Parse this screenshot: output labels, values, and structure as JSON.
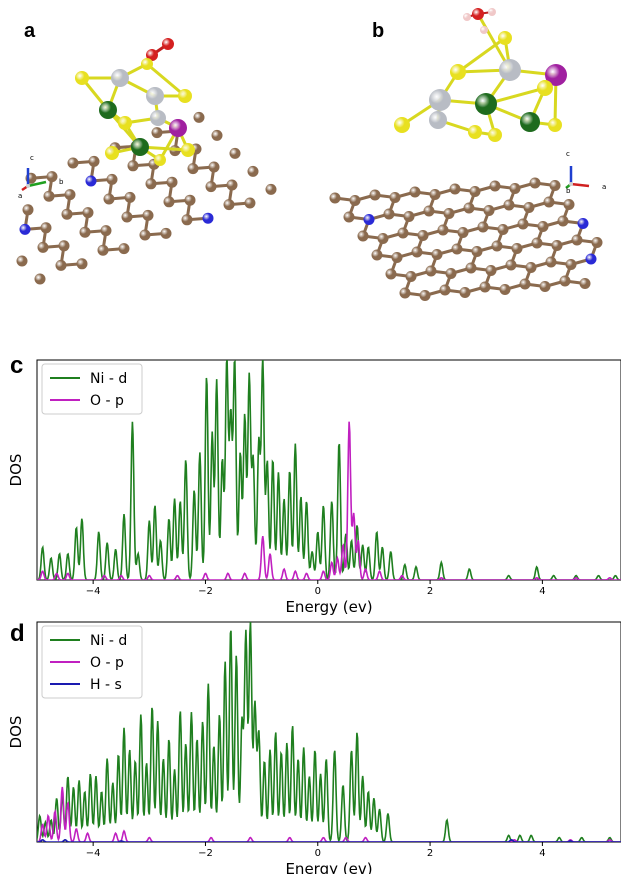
{
  "panels": {
    "a": "a",
    "b": "b",
    "c": "c",
    "d": "d"
  },
  "axes_triad_a": {
    "z": "c",
    "x": "b",
    "y": "a"
  },
  "axes_triad_b": {
    "z": "c",
    "x": "a",
    "y": "b"
  },
  "colors": {
    "carbon": "#8a6a4e",
    "nitrogen": "#2a2ad6",
    "nickel": "#1e6b1e",
    "sulfur": "#e8e020",
    "silver_atom": "#b8bcc4",
    "magenta_atom": "#a020a0",
    "oxygen": "#d42020",
    "hydrogen": "#f0c8c8",
    "ni_d": "#1f7f1f",
    "o_p": "#c020c0",
    "h_s": "#1a1ab0"
  },
  "chart_data": [
    {
      "type": "line",
      "panel": "c",
      "xlabel": "Energy (ev)",
      "ylabel": "DOS",
      "xlim": [
        -5.0,
        5.4
      ],
      "xticks": [
        -4,
        -2,
        0,
        2,
        4
      ],
      "xtick_labels": [
        "−4",
        "−2",
        "0",
        "2",
        "4"
      ],
      "ylim": [
        0,
        1.0
      ],
      "legend_loc": "upper-left",
      "series": [
        {
          "name": "Ni - d",
          "color": "#1f7f1f",
          "peaks": [
            [
              -4.9,
              0.15
            ],
            [
              -4.75,
              0.1
            ],
            [
              -4.6,
              0.12
            ],
            [
              -4.45,
              0.12
            ],
            [
              -4.3,
              0.24
            ],
            [
              -4.2,
              0.28
            ],
            [
              -3.9,
              0.22
            ],
            [
              -3.75,
              0.17
            ],
            [
              -3.6,
              0.14
            ],
            [
              -3.45,
              0.3
            ],
            [
              -3.3,
              0.72
            ],
            [
              -3.2,
              0.12
            ],
            [
              -3.0,
              0.27
            ],
            [
              -2.9,
              0.34
            ],
            [
              -2.8,
              0.18
            ],
            [
              -2.65,
              0.28
            ],
            [
              -2.55,
              0.37
            ],
            [
              -2.45,
              0.36
            ],
            [
              -2.35,
              0.55
            ],
            [
              -2.2,
              0.41
            ],
            [
              -2.1,
              0.58
            ],
            [
              -1.98,
              0.93
            ],
            [
              -1.88,
              0.67
            ],
            [
              -1.8,
              0.91
            ],
            [
              -1.7,
              0.55
            ],
            [
              -1.62,
              1.0
            ],
            [
              -1.55,
              0.75
            ],
            [
              -1.48,
              1.0
            ],
            [
              -1.38,
              0.58
            ],
            [
              -1.3,
              0.75
            ],
            [
              -1.22,
              0.93
            ],
            [
              -1.15,
              0.55
            ],
            [
              -1.05,
              0.63
            ],
            [
              -0.98,
              1.0
            ],
            [
              -0.9,
              0.54
            ],
            [
              -0.8,
              0.55
            ],
            [
              -0.7,
              0.49
            ],
            [
              -0.6,
              0.37
            ],
            [
              -0.5,
              0.5
            ],
            [
              -0.4,
              0.62
            ],
            [
              -0.3,
              0.38
            ],
            [
              -0.2,
              0.36
            ],
            [
              -0.1,
              0.13
            ],
            [
              0.0,
              0.22
            ],
            [
              0.1,
              0.34
            ],
            [
              0.25,
              0.36
            ],
            [
              0.38,
              0.63
            ],
            [
              0.5,
              0.21
            ],
            [
              0.6,
              0.18
            ],
            [
              0.7,
              0.25
            ],
            [
              0.8,
              0.16
            ],
            [
              0.9,
              0.15
            ],
            [
              1.05,
              0.22
            ],
            [
              1.15,
              0.15
            ],
            [
              1.3,
              0.13
            ],
            [
              1.55,
              0.07
            ],
            [
              1.75,
              0.06
            ],
            [
              2.2,
              0.08
            ],
            [
              2.7,
              0.05
            ],
            [
              3.4,
              0.02
            ],
            [
              3.9,
              0.06
            ],
            [
              4.2,
              0.02
            ],
            [
              4.6,
              0.02
            ],
            [
              5.0,
              0.02
            ],
            [
              5.3,
              0.02
            ]
          ]
        },
        {
          "name": "O - p",
          "color": "#c020c0",
          "peaks": [
            [
              -4.9,
              0.04
            ],
            [
              -4.65,
              0.03
            ],
            [
              -4.45,
              0.03
            ],
            [
              -3.8,
              0.02
            ],
            [
              -3.5,
              0.02
            ],
            [
              -3.0,
              0.02
            ],
            [
              -2.5,
              0.02
            ],
            [
              -2.0,
              0.03
            ],
            [
              -1.6,
              0.03
            ],
            [
              -1.3,
              0.03
            ],
            [
              -0.98,
              0.2
            ],
            [
              -0.85,
              0.12
            ],
            [
              -0.6,
              0.05
            ],
            [
              -0.4,
              0.04
            ],
            [
              -0.2,
              0.03
            ],
            [
              0.1,
              0.04
            ],
            [
              0.25,
              0.08
            ],
            [
              0.35,
              0.1
            ],
            [
              0.45,
              0.16
            ],
            [
              0.56,
              0.72
            ],
            [
              0.64,
              0.3
            ],
            [
              0.72,
              0.18
            ],
            [
              0.85,
              0.05
            ],
            [
              1.1,
              0.04
            ],
            [
              1.5,
              0.02
            ],
            [
              2.2,
              0.01
            ],
            [
              3.9,
              0.01
            ],
            [
              4.6,
              0.01
            ],
            [
              5.2,
              0.01
            ]
          ]
        }
      ]
    },
    {
      "type": "line",
      "panel": "d",
      "xlabel": "Energy (ev)",
      "ylabel": "DOS",
      "xlim": [
        -5.0,
        5.4
      ],
      "xticks": [
        -4,
        -2,
        0,
        2,
        4
      ],
      "xtick_labels": [
        "−4",
        "−2",
        "0",
        "2",
        "4"
      ],
      "ylim": [
        0,
        1.0
      ],
      "legend_loc": "upper-left",
      "series": [
        {
          "name": "Ni - d",
          "color": "#1f7f1f",
          "peaks": [
            [
              -4.95,
              0.12
            ],
            [
              -4.85,
              0.09
            ],
            [
              -4.75,
              0.1
            ],
            [
              -4.65,
              0.2
            ],
            [
              -4.55,
              0.21
            ],
            [
              -4.45,
              0.3
            ],
            [
              -4.35,
              0.25
            ],
            [
              -4.25,
              0.28
            ],
            [
              -4.15,
              0.23
            ],
            [
              -4.05,
              0.31
            ],
            [
              -3.95,
              0.3
            ],
            [
              -3.85,
              0.23
            ],
            [
              -3.75,
              0.38
            ],
            [
              -3.65,
              0.27
            ],
            [
              -3.55,
              0.4
            ],
            [
              -3.45,
              0.52
            ],
            [
              -3.35,
              0.42
            ],
            [
              -3.25,
              0.37
            ],
            [
              -3.15,
              0.58
            ],
            [
              -3.05,
              0.36
            ],
            [
              -2.95,
              0.62
            ],
            [
              -2.85,
              0.55
            ],
            [
              -2.75,
              0.38
            ],
            [
              -2.65,
              0.47
            ],
            [
              -2.55,
              0.33
            ],
            [
              -2.45,
              0.6
            ],
            [
              -2.35,
              0.45
            ],
            [
              -2.25,
              0.59
            ],
            [
              -2.15,
              0.47
            ],
            [
              -2.05,
              0.55
            ],
            [
              -1.95,
              0.72
            ],
            [
              -1.85,
              0.44
            ],
            [
              -1.75,
              0.58
            ],
            [
              -1.65,
              0.82
            ],
            [
              -1.55,
              0.98
            ],
            [
              -1.45,
              0.85
            ],
            [
              -1.35,
              0.55
            ],
            [
              -1.28,
              0.95
            ],
            [
              -1.2,
              1.0
            ],
            [
              -1.12,
              0.63
            ],
            [
              -1.05,
              0.5
            ],
            [
              -0.95,
              0.37
            ],
            [
              -0.85,
              0.42
            ],
            [
              -0.75,
              0.5
            ],
            [
              -0.65,
              0.41
            ],
            [
              -0.55,
              0.45
            ],
            [
              -0.45,
              0.53
            ],
            [
              -0.35,
              0.38
            ],
            [
              -0.25,
              0.43
            ],
            [
              -0.15,
              0.3
            ],
            [
              -0.05,
              0.42
            ],
            [
              0.05,
              0.31
            ],
            [
              0.15,
              0.38
            ],
            [
              0.3,
              0.42
            ],
            [
              0.45,
              0.26
            ],
            [
              0.6,
              0.42
            ],
            [
              0.7,
              0.5
            ],
            [
              0.8,
              0.3
            ],
            [
              0.9,
              0.23
            ],
            [
              1.0,
              0.2
            ],
            [
              1.1,
              0.15
            ],
            [
              1.25,
              0.13
            ],
            [
              2.3,
              0.1
            ],
            [
              3.4,
              0.03
            ],
            [
              3.6,
              0.03
            ],
            [
              3.8,
              0.03
            ],
            [
              4.3,
              0.02
            ],
            [
              4.7,
              0.02
            ],
            [
              5.2,
              0.02
            ]
          ]
        },
        {
          "name": "O - p",
          "color": "#c020c0",
          "peaks": [
            [
              -4.9,
              0.08
            ],
            [
              -4.8,
              0.12
            ],
            [
              -4.68,
              0.14
            ],
            [
              -4.55,
              0.25
            ],
            [
              -4.45,
              0.18
            ],
            [
              -4.3,
              0.06
            ],
            [
              -4.1,
              0.04
            ],
            [
              -3.6,
              0.04
            ],
            [
              -3.45,
              0.05
            ],
            [
              -3.0,
              0.02
            ],
            [
              -1.9,
              0.02
            ],
            [
              -1.2,
              0.02
            ],
            [
              -0.5,
              0.02
            ],
            [
              0.1,
              0.02
            ],
            [
              0.5,
              0.02
            ],
            [
              0.85,
              0.02
            ],
            [
              3.5,
              0.01
            ],
            [
              4.5,
              0.01
            ],
            [
              5.2,
              0.01
            ]
          ]
        },
        {
          "name": "H - s",
          "color": "#1a1ab0",
          "peaks": [
            [
              -4.9,
              0.01
            ],
            [
              -4.5,
              0.01
            ],
            [
              -3.5,
              0.005
            ],
            [
              3.45,
              0.01
            ],
            [
              4.5,
              0.005
            ]
          ]
        }
      ]
    }
  ]
}
